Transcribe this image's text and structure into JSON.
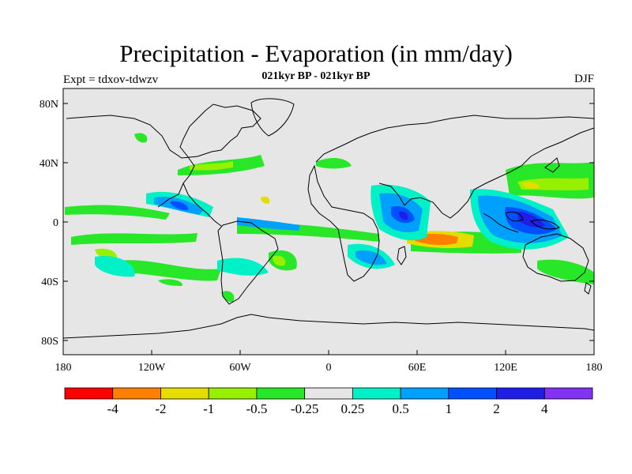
{
  "title": "Precipitation - Evaporation (in mm/day)",
  "subtitle": "021kyr BP - 021kyr BP",
  "experiment": "Expt = tdxov-tdwzv",
  "season": "DJF",
  "lat_ticks": [
    "80N",
    "40N",
    "0",
    "40S",
    "80S"
  ],
  "lon_ticks": [
    "180",
    "120W",
    "60W",
    "0",
    "60E",
    "120E",
    "180"
  ],
  "colorbar": {
    "labels": [
      "-4",
      "-2",
      "-1",
      "-0.5",
      "-0.25",
      "0.25",
      "0.5",
      "1",
      "2",
      "4"
    ],
    "colors": [
      "#ff0000",
      "#ff8000",
      "#e6dc00",
      "#96f000",
      "#28e628",
      "#e6e6e6",
      "#00f0c8",
      "#00a0ff",
      "#0050ff",
      "#1e1ee6",
      "#8232f0"
    ]
  },
  "colors": {
    "background": "#e6e6e6",
    "coastline": "#000000"
  }
}
